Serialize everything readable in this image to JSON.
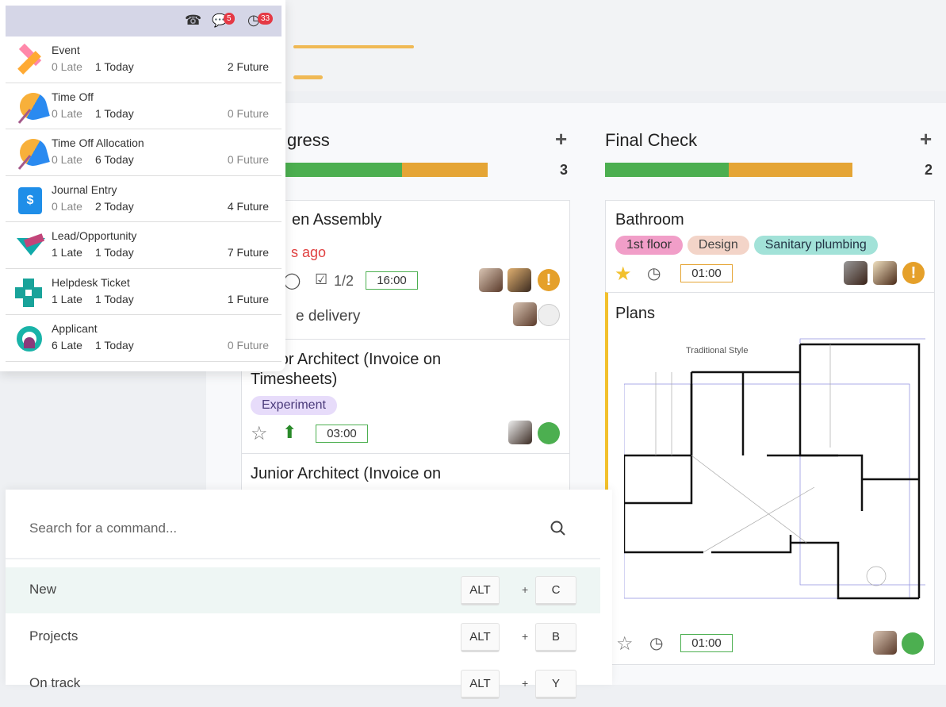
{
  "activity_menu": {
    "header_icons": [
      {
        "icon": "phone-icon"
      },
      {
        "icon": "chat-icon",
        "badge": "5"
      },
      {
        "icon": "clock-icon",
        "badge": "33"
      }
    ],
    "items": [
      {
        "name": "Event",
        "late": "0 Late",
        "today": "1 Today",
        "future": "2 Future",
        "icon": "event-icon"
      },
      {
        "name": "Time Off",
        "late": "0 Late",
        "today": "1 Today",
        "future": "0 Future",
        "icon": "umbrella-icon"
      },
      {
        "name": "Time Off Allocation",
        "late": "0 Late",
        "today": "6 Today",
        "future": "0 Future",
        "icon": "umbrella-icon"
      },
      {
        "name": "Journal Entry",
        "late": "0 Late",
        "today": "2 Today",
        "future": "4 Future",
        "icon": "dollar-doc-icon"
      },
      {
        "name": "Lead/Opportunity",
        "late": "1 Late",
        "today": "1 Today",
        "future": "7 Future",
        "icon": "crm-icon"
      },
      {
        "name": "Helpdesk Ticket",
        "late": "1 Late",
        "today": "1 Today",
        "future": "1 Future",
        "icon": "helpdesk-icon"
      },
      {
        "name": "Applicant",
        "late": "6 Late",
        "today": "1 Today",
        "future": "0 Future",
        "icon": "recruitment-icon"
      }
    ]
  },
  "kanban": {
    "col1": {
      "title_fragment": "gress",
      "count": "3",
      "progress": {
        "green": 0.65,
        "orange": 0.35
      },
      "card1": {
        "title_fragment": "en Assembly",
        "date_fragment": "s ago",
        "checklist": "1/2",
        "time": "16:00",
        "sub_fragment": "e delivery"
      },
      "card2": {
        "title": "Junior Architect (Invoice on Timesheets)",
        "tag": "Experiment",
        "time": "03:00"
      },
      "card3": {
        "title": "Junior Architect (Invoice on"
      }
    },
    "col2": {
      "title": "Final Check",
      "count": "2",
      "progress": {
        "green": 0.5,
        "orange": 0.5
      },
      "card1": {
        "title": "Bathroom",
        "tags": [
          "1st floor",
          "Design",
          "Sanitary plumbing"
        ],
        "time": "01:00",
        "starred": true
      },
      "card2": {
        "title": "Plans",
        "image_caption": "Traditional Style",
        "time": "01:00"
      }
    },
    "colors": {
      "green": "#4caf50",
      "orange": "#e5a535",
      "late_red": "#e04040"
    }
  },
  "palette": {
    "placeholder": "Search for a command...",
    "commands": [
      {
        "label": "New",
        "mod": "ALT",
        "key": "C",
        "selected": true
      },
      {
        "label": "Projects",
        "mod": "ALT",
        "key": "B"
      },
      {
        "label": "On track",
        "mod": "ALT",
        "key": "Y"
      }
    ],
    "plus": "+"
  }
}
